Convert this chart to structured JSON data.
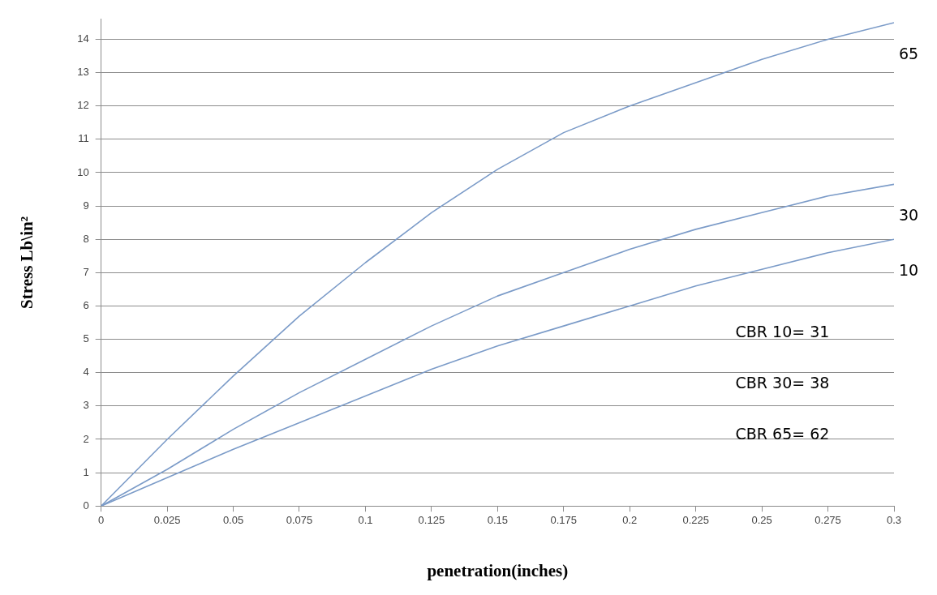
{
  "chart_data": {
    "type": "line",
    "xlabel": "penetration(inches)",
    "ylabel": "Stress Lb\\in²",
    "x": [
      0,
      0.025,
      0.05,
      0.075,
      0.1,
      0.125,
      0.15,
      0.175,
      0.2,
      0.225,
      0.25,
      0.275,
      0.3
    ],
    "series": [
      {
        "name": "65",
        "color": "#7b9bc8",
        "values": [
          0,
          2,
          3.9,
          5.7,
          7.3,
          8.8,
          10.1,
          11.2,
          12,
          12.7,
          13.4,
          14,
          14.5
        ]
      },
      {
        "name": "30",
        "color": "#7b9bc8",
        "values": [
          0,
          1.1,
          2.3,
          3.4,
          4.4,
          5.4,
          6.3,
          7,
          7.7,
          8.3,
          8.8,
          9.3,
          9.65
        ]
      },
      {
        "name": "10",
        "color": "#7b9bc8",
        "values": [
          0,
          0.85,
          1.7,
          2.5,
          3.3,
          4.1,
          4.8,
          5.4,
          6,
          6.6,
          7.1,
          7.6,
          8
        ]
      }
    ],
    "annotations": [
      "CBR 10= 31",
      "CBR 30= 38",
      "CBR 65= 62"
    ],
    "xlim": [
      0,
      0.3
    ],
    "xticks": [
      0,
      0.025,
      0.05,
      0.075,
      0.1,
      0.125,
      0.15,
      0.175,
      0.2,
      0.225,
      0.25,
      0.275,
      0.3
    ],
    "ylim": [
      0,
      14.6
    ],
    "yticks": [
      0,
      1,
      2,
      3,
      4,
      5,
      6,
      7,
      8,
      9,
      10,
      11,
      12,
      13,
      14
    ],
    "grid": "y",
    "legend": false,
    "marker": "none",
    "line_style": "solid"
  }
}
